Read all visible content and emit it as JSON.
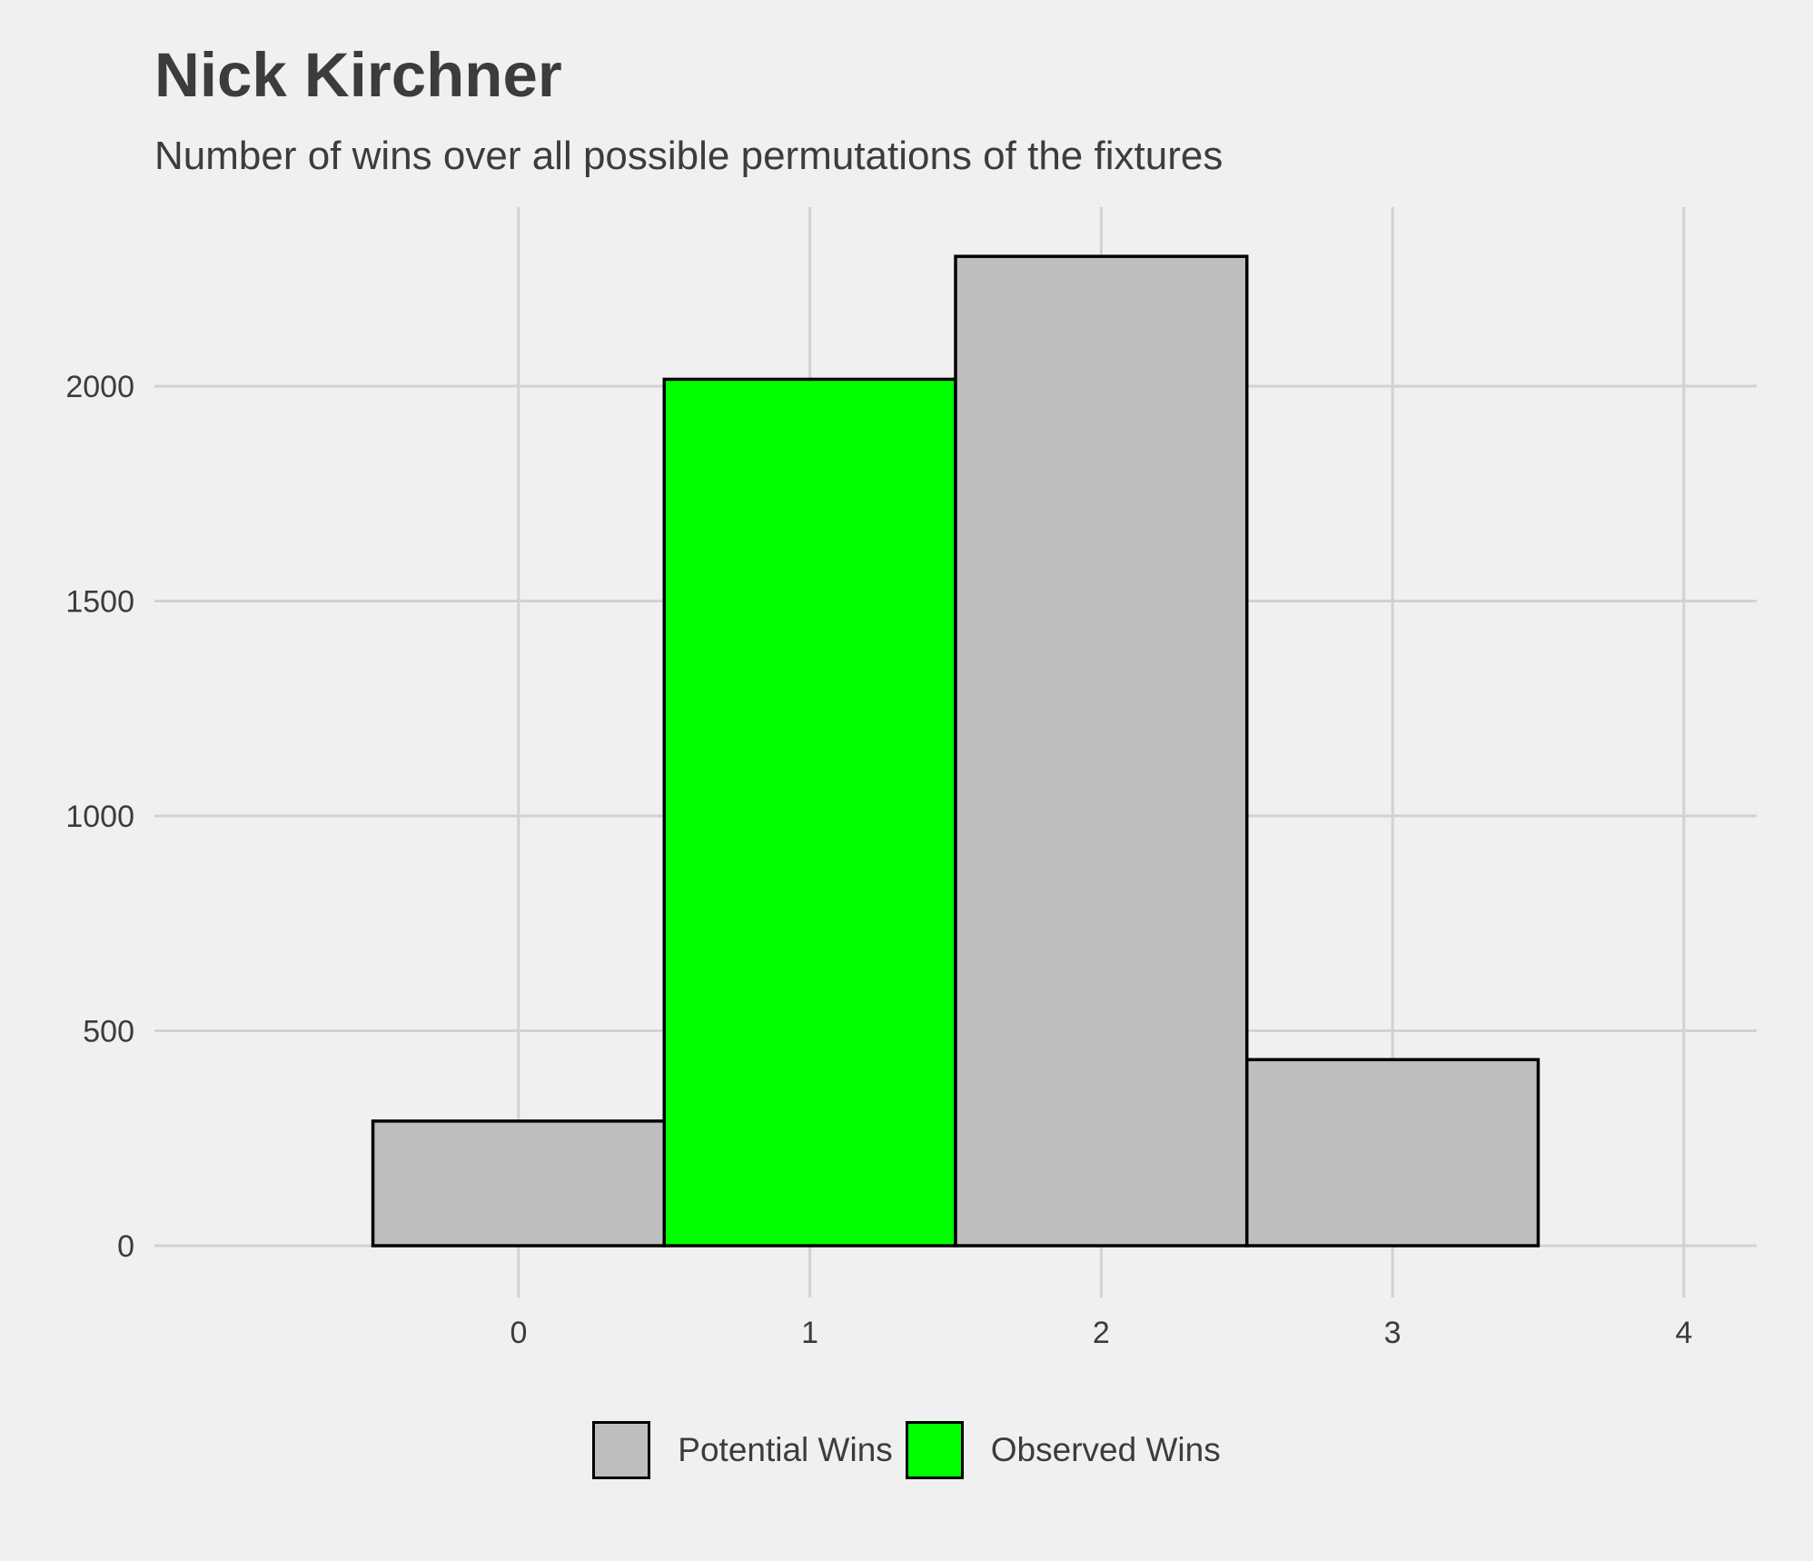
{
  "title": "Nick Kirchner",
  "subtitle": "Number of wins over all possible permutations of the fixtures",
  "colors": {
    "background": "#f0f0f0",
    "grid": "#d2d2d2",
    "text": "#3c3c3c",
    "bar_outline": "#000000"
  },
  "legend": [
    {
      "label": "Potential Wins",
      "color": "#bebebe"
    },
    {
      "label": "Observed Wins",
      "color": "#00ff00"
    }
  ],
  "chart_data": {
    "type": "bar",
    "title": "Nick Kirchner",
    "subtitle": "Number of wins over all possible permutations of the fixtures",
    "xlabel": "",
    "ylabel": "",
    "x_ticks": [
      "0",
      "1",
      "2",
      "3",
      "4"
    ],
    "y_ticks": [
      "0",
      "500",
      "1000",
      "1500",
      "2000"
    ],
    "xlim": [
      -1.25,
      4.25
    ],
    "ylim": [
      0,
      2420
    ],
    "grid": true,
    "legend_position": "bottom",
    "bars": [
      {
        "x": 0,
        "value": 290,
        "series": "Potential Wins",
        "color": "#bebebe"
      },
      {
        "x": 1,
        "value": 2016,
        "series": "Observed Wins",
        "color": "#00ff00"
      },
      {
        "x": 2,
        "value": 2302,
        "series": "Potential Wins",
        "color": "#bebebe"
      },
      {
        "x": 3,
        "value": 433,
        "series": "Potential Wins",
        "color": "#bebebe"
      }
    ]
  }
}
